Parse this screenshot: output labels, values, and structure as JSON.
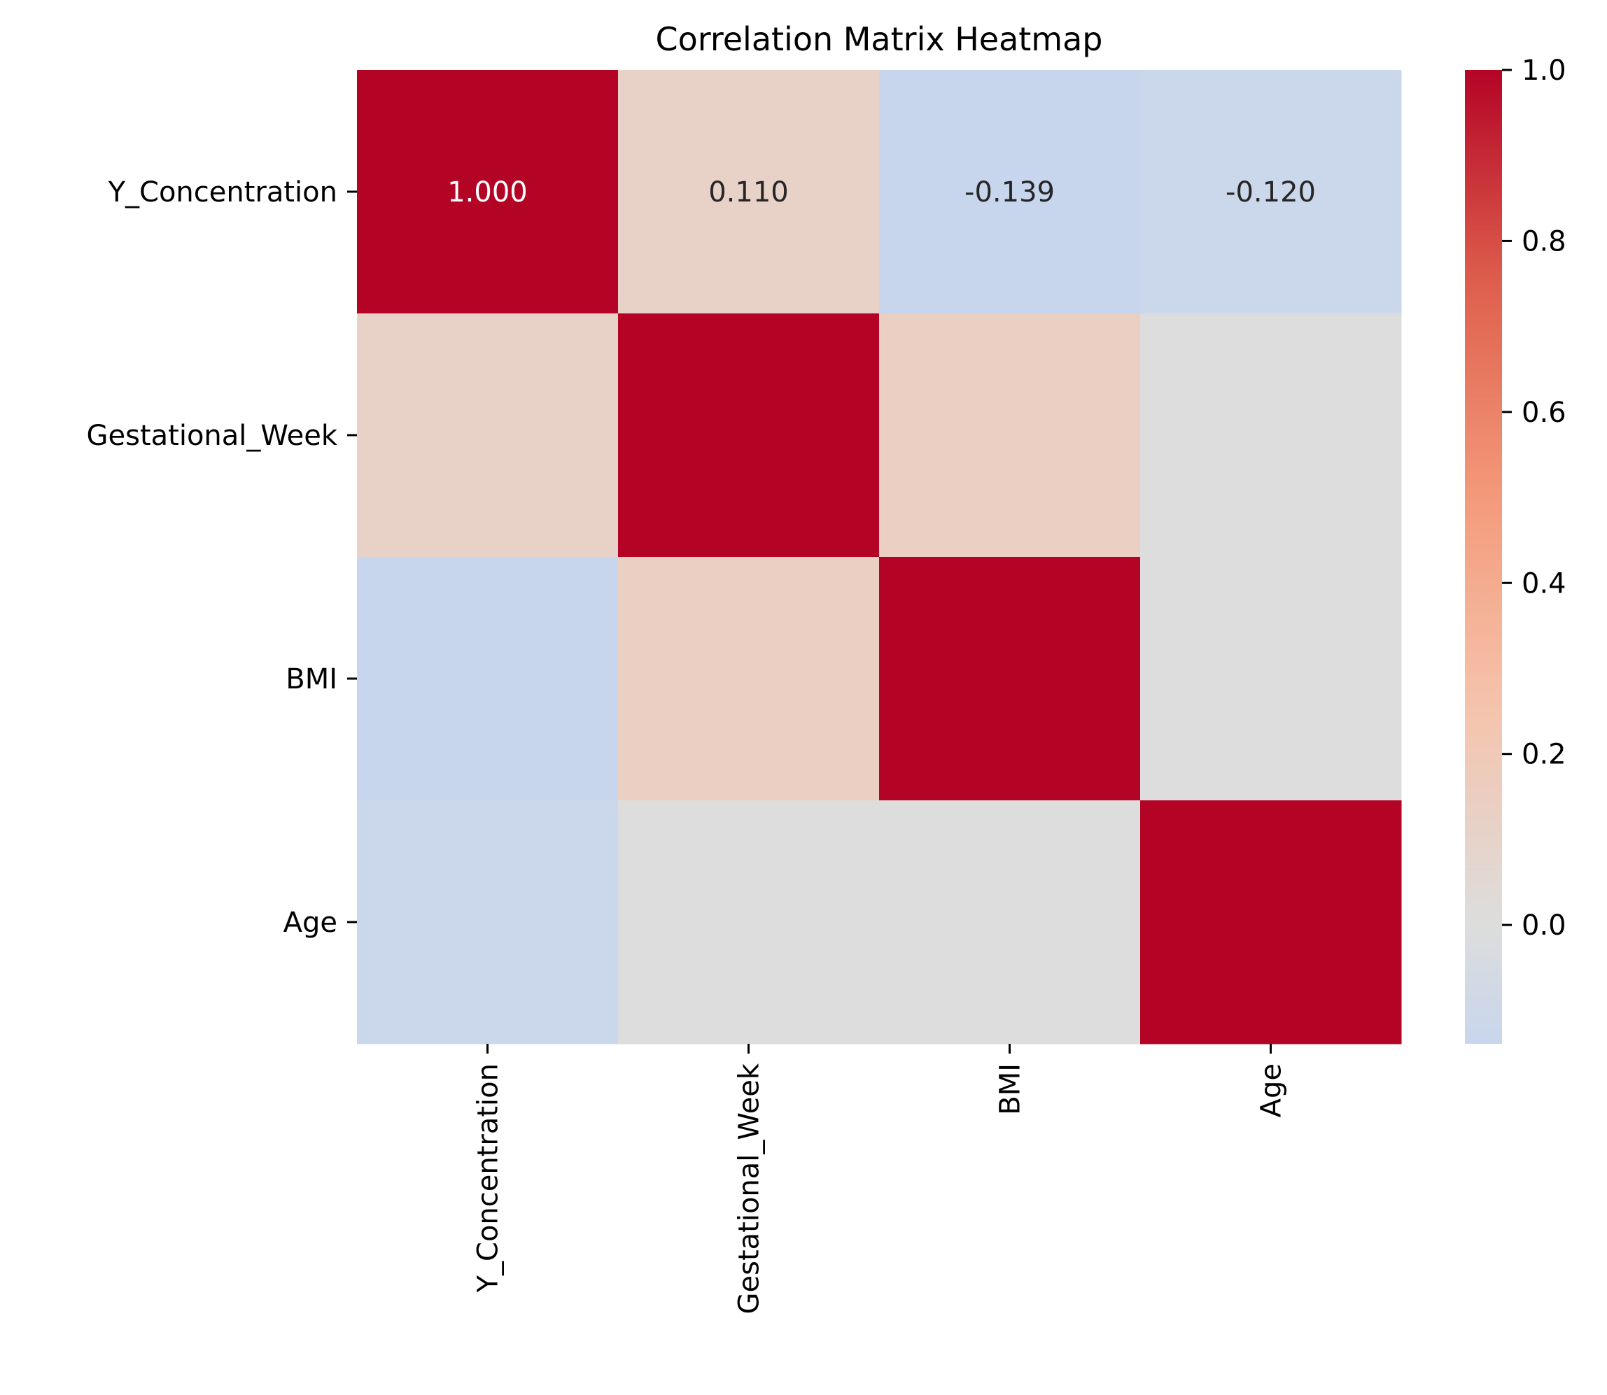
{
  "chart_data": {
    "type": "heatmap",
    "title": "Correlation Matrix Heatmap",
    "variables": [
      "Y_Concentration",
      "Gestational_Week",
      "BMI",
      "Age"
    ],
    "matrix": [
      [
        1.0,
        0.11,
        -0.139,
        -0.12
      ],
      [
        0.11,
        1.0,
        0.14,
        0.0
      ],
      [
        -0.139,
        0.14,
        1.0,
        0.0
      ],
      [
        -0.12,
        0.0,
        0.0,
        1.0
      ]
    ],
    "annotations": [
      {
        "row": 0,
        "col": 0,
        "text": "1.000"
      },
      {
        "row": 0,
        "col": 1,
        "text": "0.110"
      },
      {
        "row": 0,
        "col": 2,
        "text": "-0.139"
      },
      {
        "row": 0,
        "col": 3,
        "text": "-0.120"
      }
    ],
    "colormap": "coolwarm",
    "center": 0,
    "colorbar": {
      "range": [
        -0.139,
        1.0
      ],
      "ticks": [
        0.0,
        0.2,
        0.4,
        0.6,
        0.8,
        1.0
      ],
      "tick_labels": [
        "0.0",
        "0.2",
        "0.4",
        "0.6",
        "0.8",
        "1.0"
      ]
    },
    "x_tick_rotation": "vertical"
  }
}
